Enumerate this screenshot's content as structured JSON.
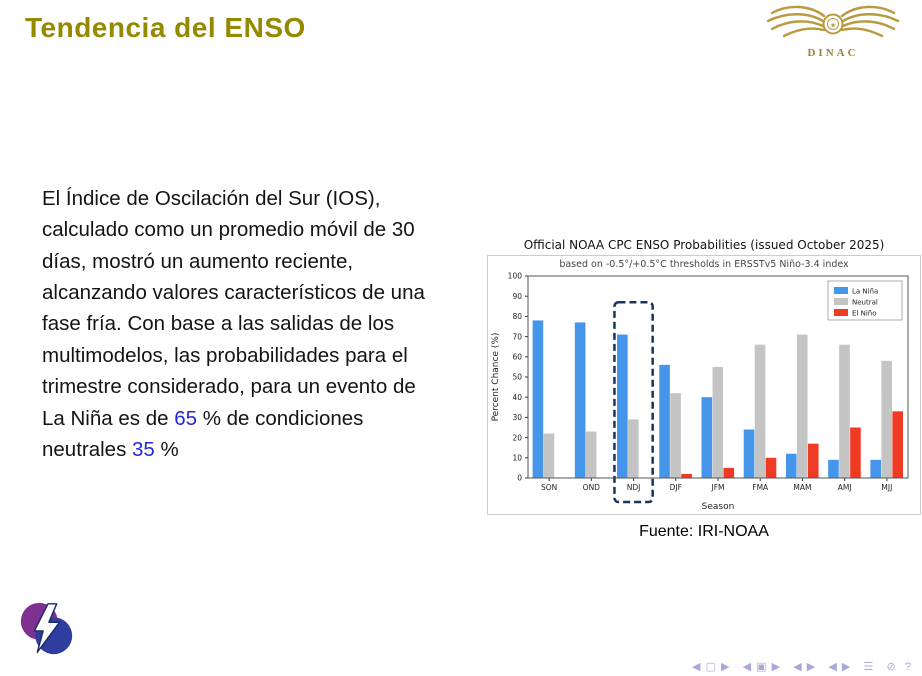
{
  "header": {
    "title": "Tendencia del ENSO",
    "logo_text": "DINAC"
  },
  "colors": {
    "title": "#958900",
    "accent_number_blue": "#2727de",
    "logo_gold": "#b99a3e",
    "highlight_box": "#17365d"
  },
  "body": {
    "text_1": "El Índice de Oscilación del Sur (IOS), calculado como un promedio móvil de 30 días, mostró un aumento reciente, alcanzando valores característicos de una fase fría. Con base a las salidas de los multimodelos, las probabilidades para el trimestre considerado, para un evento de La Niña es de ",
    "value_la_nina": "65",
    "text_2": " % de condiciones neutrales ",
    "value_neutral": "35",
    "text_3": " %"
  },
  "figure": {
    "caption": "Fuente: IRI-NOAA"
  },
  "chart_data": {
    "type": "bar",
    "title": "Official NOAA CPC ENSO Probabilities (issued October 2025)",
    "subtitle": "based on -0.5°/+0.5°C thresholds in ERSSTv5 Niño-3.4 index",
    "xlabel": "Season",
    "ylabel": "Percent Chance (%)",
    "ylim": [
      0,
      100
    ],
    "ytick_step": 10,
    "grid": false,
    "legend_position": "top-right",
    "categories": [
      "SON",
      "OND",
      "NDJ",
      "DJF",
      "JFM",
      "FMA",
      "MAM",
      "AMJ",
      "MJJ"
    ],
    "series": [
      {
        "name": "La Niña",
        "color": "#4596ea",
        "values": [
          78,
          77,
          71,
          56,
          40,
          24,
          12,
          9,
          9
        ]
      },
      {
        "name": "Neutral",
        "color": "#c4c4c4",
        "values": [
          22,
          23,
          29,
          42,
          55,
          66,
          71,
          66,
          58
        ]
      },
      {
        "name": "El Niño",
        "color": "#f03b24",
        "values": [
          0,
          0,
          0,
          2,
          5,
          10,
          17,
          25,
          33
        ]
      }
    ],
    "highlight_category": "NDJ",
    "highlight_color": "#17365d"
  },
  "footer": {
    "nav_symbols": "◀ ▢ ▶   ◀ ▣ ▶   ◀ ▶   ◀ ▶   ☰   ⊘  ?"
  }
}
